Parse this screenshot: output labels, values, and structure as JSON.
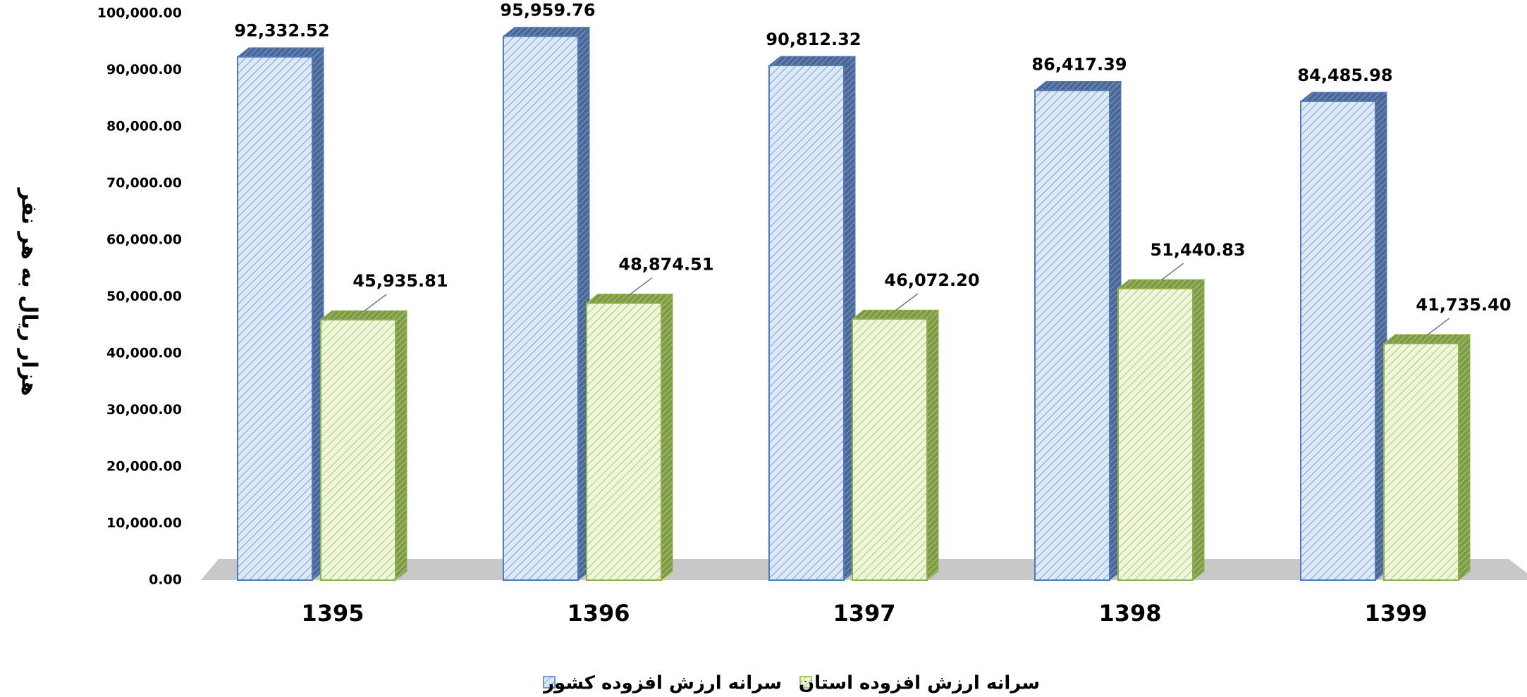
{
  "chart_data": {
    "type": "bar",
    "y_label": "هزار ریال به هر نفر",
    "categories": [
      "1395",
      "1396",
      "1397",
      "1398",
      "1399"
    ],
    "series": [
      {
        "name": "سرانه ارزش افزوده کشور",
        "color": "#4f7ac0",
        "values": [
          92332.52,
          95959.76,
          90812.32,
          86417.39,
          84485.98
        ],
        "value_labels": [
          "92,332.52",
          "95,959.76",
          "90,812.32",
          "86,417.39",
          "84,485.98"
        ]
      },
      {
        "name": "سرانه ارزش افزوده استان",
        "color": "#8db24a",
        "values": [
          45935.81,
          48874.51,
          46072.2,
          51440.83,
          41735.4
        ],
        "value_labels": [
          "45,935.81",
          "48,874.51",
          "46,072.20",
          "51,440.83",
          "41,735.40"
        ]
      }
    ],
    "ylim": [
      0,
      100000
    ],
    "yticks": [
      {
        "value": 0,
        "label": "0.00"
      },
      {
        "value": 10000,
        "label": "10,000.00"
      },
      {
        "value": 20000,
        "label": "20,000.00"
      },
      {
        "value": 30000,
        "label": "30,000.00"
      },
      {
        "value": 40000,
        "label": "40,000.00"
      },
      {
        "value": 50000,
        "label": "50,000.00"
      },
      {
        "value": 60000,
        "label": "60,000.00"
      },
      {
        "value": 70000,
        "label": "70,000.00"
      },
      {
        "value": 80000,
        "label": "80,000.00"
      },
      {
        "value": 90000,
        "label": "90,000.00"
      },
      {
        "value": 100000,
        "label": "100,000.00"
      }
    ],
    "grid": false
  }
}
